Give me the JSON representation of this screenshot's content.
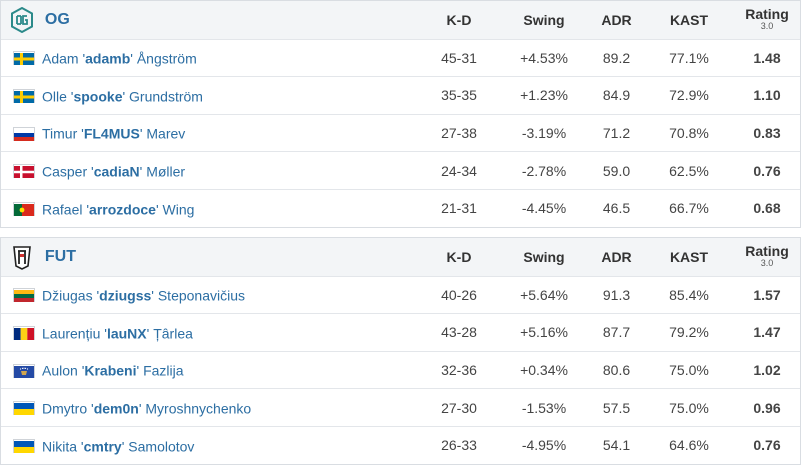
{
  "columns": {
    "kd": "K-D",
    "swing": "Swing",
    "adr": "ADR",
    "kast": "KAST",
    "rating": "Rating",
    "rating_version": "3.0"
  },
  "teams": [
    {
      "name": "OG",
      "logo_icon": "og-logo-icon",
      "players": [
        {
          "first": "Adam",
          "nick": "adamb",
          "last": "Ångström",
          "flag": "sweden",
          "kd": "45-31",
          "swing": "+4.53%",
          "adr": "89.2",
          "kast": "77.1%",
          "rating": "1.48",
          "swing_dir": "pos",
          "rating_level": "good"
        },
        {
          "first": "Olle",
          "nick": "spooke",
          "last": "Grundström",
          "flag": "sweden",
          "kd": "35-35",
          "swing": "+1.23%",
          "adr": "84.9",
          "kast": "72.9%",
          "rating": "1.10",
          "swing_dir": "pos",
          "rating_level": "good"
        },
        {
          "first": "Timur",
          "nick": "FL4MUS",
          "last": "Marev",
          "flag": "russia",
          "kd": "27-38",
          "swing": "-3.19%",
          "adr": "71.2",
          "kast": "70.8%",
          "rating": "0.83",
          "swing_dir": "neg",
          "rating_level": "bad"
        },
        {
          "first": "Casper",
          "nick": "cadiaN",
          "last": "Møller",
          "flag": "denmark",
          "kd": "24-34",
          "swing": "-2.78%",
          "adr": "59.0",
          "kast": "62.5%",
          "rating": "0.76",
          "swing_dir": "neg",
          "rating_level": "bad"
        },
        {
          "first": "Rafael",
          "nick": "arrozdoce",
          "last": "Wing",
          "flag": "portugal",
          "kd": "21-31",
          "swing": "-4.45%",
          "adr": "46.5",
          "kast": "66.7%",
          "rating": "0.68",
          "swing_dir": "neg",
          "rating_level": "bad"
        }
      ]
    },
    {
      "name": "FUT",
      "logo_icon": "fut-logo-icon",
      "players": [
        {
          "first": "Džiugas",
          "nick": "dziugss",
          "last": "Steponavičius",
          "flag": "lithuania",
          "kd": "40-26",
          "swing": "+5.64%",
          "adr": "91.3",
          "kast": "85.4%",
          "rating": "1.57",
          "swing_dir": "pos",
          "rating_level": "good"
        },
        {
          "first": "Laurențiu",
          "nick": "lauNX",
          "last": "Țârlea",
          "flag": "romania",
          "kd": "43-28",
          "swing": "+5.16%",
          "adr": "87.7",
          "kast": "79.2%",
          "rating": "1.47",
          "swing_dir": "pos",
          "rating_level": "good"
        },
        {
          "first": "Aulon",
          "nick": "Krabeni",
          "last": "Fazlija",
          "flag": "kosovo",
          "kd": "32-36",
          "swing": "+0.34%",
          "adr": "80.6",
          "kast": "75.0%",
          "rating": "1.02",
          "swing_dir": "neu",
          "rating_level": "neu"
        },
        {
          "first": "Dmytro",
          "nick": "dem0n",
          "last": "Myroshnychenko",
          "flag": "ukraine",
          "kd": "27-30",
          "swing": "-1.53%",
          "adr": "57.5",
          "kast": "75.0%",
          "rating": "0.96",
          "swing_dir": "neg",
          "rating_level": "neu"
        },
        {
          "first": "Nikita",
          "nick": "cmtry",
          "last": "Samolotov",
          "flag": "ukraine",
          "kd": "26-33",
          "swing": "-4.95%",
          "adr": "54.1",
          "kast": "64.6%",
          "rating": "0.76",
          "swing_dir": "neg",
          "rating_level": "bad"
        }
      ]
    }
  ],
  "colors": {
    "link": "#2c6ea3",
    "positive": "#3a9b2f",
    "negative": "#d1312e",
    "header_bg": "#f3f5f7",
    "border": "#d9dde2"
  }
}
